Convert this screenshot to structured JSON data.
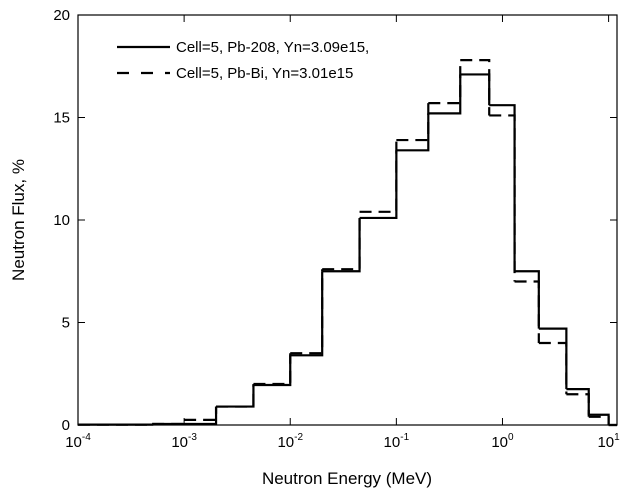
{
  "chart_data": {
    "type": "histogram-step",
    "xlabel": "Neutron Energy  (MeV)",
    "ylabel": "Neutron Flux, %",
    "bins": [
      0.0001,
      0.0005,
      0.001,
      0.002,
      0.0045,
      0.01,
      0.02,
      0.045,
      0.1,
      0.2,
      0.4,
      0.75,
      1.3,
      2.2,
      4,
      6.5,
      10,
      12
    ],
    "series": [
      {
        "name": "Cell=5, Pb-208, Yn=3.09e15,",
        "color": "#000000",
        "dash": "solid",
        "values": [
          0.02,
          0.05,
          0.05,
          0.9,
          1.95,
          3.4,
          7.5,
          10.1,
          13.4,
          15.2,
          17.1,
          15.6,
          7.5,
          4.7,
          1.75,
          0.5,
          0.0
        ]
      },
      {
        "name": "Cell=5, Pb-Bi, Yn=3.01e15",
        "color": "#000000",
        "dash": "dashed",
        "values": [
          0.02,
          0.05,
          0.25,
          0.9,
          2.0,
          3.5,
          7.6,
          10.4,
          13.9,
          15.7,
          17.8,
          15.1,
          7.0,
          4.0,
          1.5,
          0.4,
          0.0
        ]
      }
    ],
    "xscale": "log",
    "xlim": [
      0.0001,
      12
    ],
    "ylim": [
      0,
      20
    ],
    "xticks": [
      {
        "value": 0.0001,
        "label": "10-4"
      },
      {
        "value": 0.001,
        "label": "10-3"
      },
      {
        "value": 0.01,
        "label": "10-2"
      },
      {
        "value": 0.1,
        "label": "10-1"
      },
      {
        "value": 1,
        "label": "100"
      },
      {
        "value": 10,
        "label": "101"
      }
    ],
    "yticks": [
      0,
      5,
      10,
      15,
      20
    ],
    "legend": "upper left"
  }
}
